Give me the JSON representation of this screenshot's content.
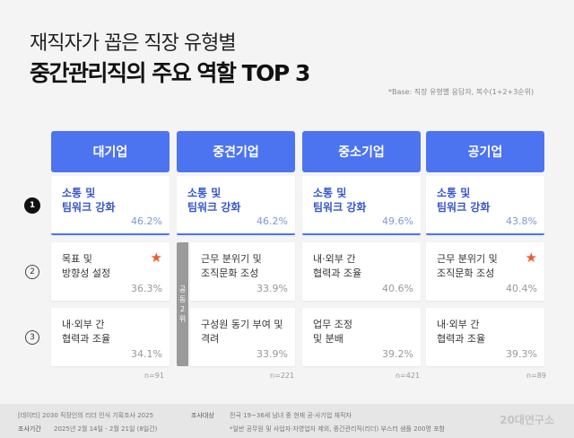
{
  "title": {
    "line1": "재직자가 꼽은 직장 유형별",
    "line2": "중간관리직의 주요 역할 TOP 3",
    "base_note": "*Base: 직장 유형별 응답자, 복수(1+2+3순위)"
  },
  "colors": {
    "header": "#4d74f0",
    "rank1_text": "#3556c9",
    "star": "#f05a28",
    "co_rank_bar": "#9a9a9a"
  },
  "ranks": [
    "1",
    "2",
    "3"
  ],
  "co_rank_label": [
    "공",
    "동",
    "2",
    "위"
  ],
  "columns": [
    {
      "name": "대기업",
      "n": "n=91",
      "items": [
        {
          "l1": "소통 및",
          "l2": "팀워크 강화",
          "pct": "46.2%"
        },
        {
          "l1": "목표 및",
          "l2": "방향성 설정",
          "pct": "36.3%",
          "star": true
        },
        {
          "l1": "내·외부 간",
          "l2": "협력과 조율",
          "pct": "34.1%"
        }
      ]
    },
    {
      "name": "중견기업",
      "n": "n=221",
      "items": [
        {
          "l1": "소통 및",
          "l2": "팀워크 강화",
          "pct": "46.2%"
        },
        {
          "l1": "근무 분위기 및",
          "l2": "조직문화 조성",
          "pct": "33.9%"
        },
        {
          "l1": "구성원 동기 부여 및",
          "l2": "격려",
          "pct": "33.9%"
        }
      ]
    },
    {
      "name": "중소기업",
      "n": "n=421",
      "items": [
        {
          "l1": "소통 및",
          "l2": "팀워크 강화",
          "pct": "49.6%"
        },
        {
          "l1": "내·외부 간",
          "l2": "협력과 조율",
          "pct": "40.6%"
        },
        {
          "l1": "업무 조정",
          "l2": "및 분배",
          "pct": "39.2%"
        }
      ]
    },
    {
      "name": "공기업",
      "n": "n=89",
      "items": [
        {
          "l1": "소통 및",
          "l2": "팀워크 강화",
          "pct": "43.8%"
        },
        {
          "l1": "근무 분위기 및",
          "l2": "조직문화 조성",
          "pct": "40.4%",
          "star": true
        },
        {
          "l1": "내·외부 간",
          "l2": "협력과 조율",
          "pct": "39.3%"
        }
      ]
    }
  ],
  "footer": {
    "source": "[데이터] 2030 직장인의 리더 인식 기획조사 2025",
    "period_label": "조사기간",
    "period": "2025년 2월 14일 - 2월 21일 (8일간)",
    "target_label": "조사대상",
    "target": "전국 19~36세 남녀 중 현재 공·사기업 재직자",
    "note": "*일반 공무원 및 사업자·자영업자 제외, 중간관리직(리더) 부스터 샘플 200명 포함",
    "logo": "20대연구소"
  }
}
